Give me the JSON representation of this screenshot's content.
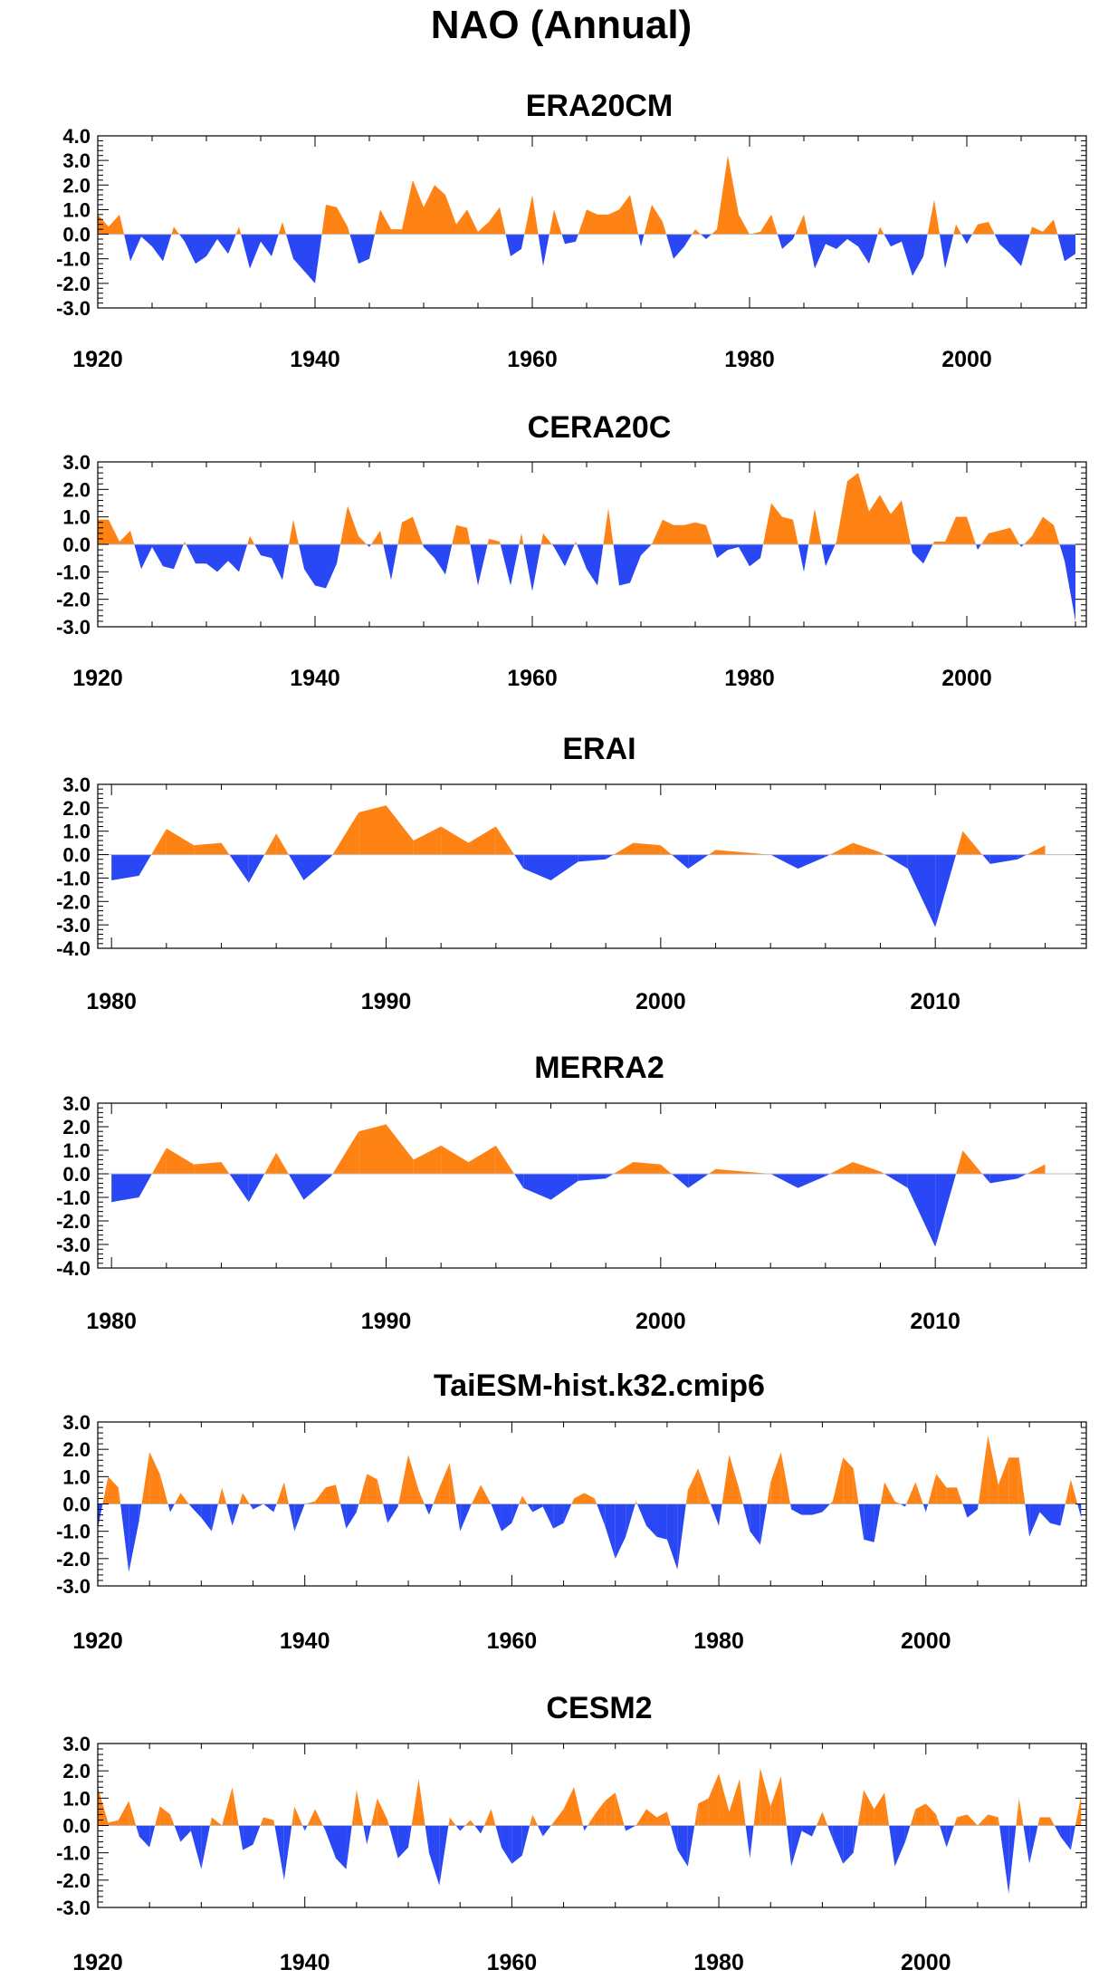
{
  "title": "NAO (Annual)",
  "colors": {
    "positive": "#ff8214",
    "negative": "#2a47f5",
    "axis": "#000000"
  },
  "chart_data": [
    {
      "type": "area",
      "title": "ERA20CM",
      "x_start": 1920,
      "xlim": [
        1920,
        2011
      ],
      "ylim": [
        -3.0,
        4.0
      ],
      "yticks": [
        "4.0",
        "3.0",
        "2.0",
        "1.0",
        "0.0",
        "-1.0",
        "-2.0",
        "-3.0"
      ],
      "xticks": [
        "1920",
        "1940",
        "1960",
        "1980",
        "2000"
      ],
      "values": [
        0.8,
        0.3,
        0.8,
        -1.1,
        -0.1,
        -0.5,
        -1.1,
        0.3,
        -0.3,
        -1.2,
        -0.9,
        -0.2,
        -0.8,
        0.3,
        -1.4,
        -0.3,
        -0.9,
        0.5,
        -1.0,
        -1.5,
        -2.0,
        1.2,
        1.1,
        0.3,
        -1.2,
        -1.0,
        1.0,
        0.2,
        0.2,
        2.2,
        1.1,
        2.0,
        1.6,
        0.4,
        1.0,
        0.1,
        0.5,
        1.1,
        -0.9,
        -0.6,
        1.6,
        -1.3,
        1.0,
        -0.4,
        -0.3,
        1.0,
        0.8,
        0.8,
        1.0,
        1.6,
        -0.5,
        1.2,
        0.5,
        -1.0,
        -0.5,
        0.2,
        -0.2,
        0.2,
        3.2,
        0.8,
        0.0,
        0.1,
        0.8,
        -0.6,
        -0.2,
        0.8,
        -1.4,
        -0.4,
        -0.6,
        -0.2,
        -0.5,
        -1.2,
        0.3,
        -0.5,
        -0.3,
        -1.7,
        -0.9,
        1.4,
        -1.4,
        0.4,
        -0.4,
        0.4,
        0.5,
        -0.4,
        -0.8,
        -1.3,
        0.3,
        0.1,
        0.6,
        -1.1,
        -0.8
      ]
    },
    {
      "type": "area",
      "title": "CERA20C",
      "x_start": 1920,
      "xlim": [
        1920,
        2011
      ],
      "ylim": [
        -3.0,
        3.0
      ],
      "yticks": [
        "3.0",
        "2.0",
        "1.0",
        "0.0",
        "-1.0",
        "-2.0",
        "-3.0"
      ],
      "xticks": [
        "1920",
        "1940",
        "1960",
        "1980",
        "2000"
      ],
      "values": [
        0.9,
        0.9,
        0.1,
        0.5,
        -0.9,
        -0.1,
        -0.8,
        -0.9,
        0.1,
        -0.7,
        -0.7,
        -1.0,
        -0.6,
        -1.0,
        0.3,
        -0.4,
        -0.5,
        -1.3,
        0.9,
        -0.9,
        -1.5,
        -1.6,
        -0.7,
        1.4,
        0.3,
        -0.1,
        0.5,
        -1.3,
        0.8,
        1.0,
        -0.1,
        -0.5,
        -1.1,
        0.7,
        0.6,
        -1.5,
        0.2,
        0.1,
        -1.5,
        0.4,
        -1.7,
        0.4,
        -0.1,
        -0.8,
        0.1,
        -0.9,
        -1.5,
        1.3,
        -1.5,
        -1.4,
        -0.4,
        0.0,
        0.9,
        0.7,
        0.7,
        0.8,
        0.7,
        -0.5,
        -0.2,
        -0.1,
        -0.8,
        -0.5,
        1.5,
        1.0,
        0.9,
        -1.0,
        1.3,
        -0.8,
        0.1,
        2.3,
        2.6,
        1.2,
        1.8,
        1.1,
        1.6,
        -0.3,
        -0.7,
        0.1,
        0.1,
        1.0,
        1.0,
        -0.2,
        0.4,
        0.5,
        0.6,
        -0.1,
        0.3,
        1.0,
        0.7,
        -0.6,
        -2.8
      ]
    },
    {
      "type": "area",
      "title": "ERAI",
      "x_start": 1980,
      "xlim": [
        1979.5,
        2015.5
      ],
      "ylim": [
        -4.0,
        3.0
      ],
      "yticks": [
        "3.0",
        "2.0",
        "1.0",
        "0.0",
        "-1.0",
        "-2.0",
        "-3.0",
        "-4.0"
      ],
      "xticks": [
        "1980",
        "1990",
        "2000",
        "2010"
      ],
      "values": [
        -1.1,
        -0.9,
        1.1,
        0.4,
        0.5,
        -1.2,
        0.9,
        -1.1,
        -0.1,
        1.8,
        2.1,
        0.6,
        1.2,
        0.5,
        1.2,
        -0.6,
        -1.1,
        -0.3,
        -0.2,
        0.5,
        0.4,
        -0.6,
        0.2,
        0.1,
        0.0,
        -0.6,
        -0.1,
        0.5,
        0.1,
        -0.6,
        -3.1,
        1.0,
        -0.4,
        -0.2,
        0.4
      ]
    },
    {
      "type": "area",
      "title": "MERRA2",
      "x_start": 1980,
      "xlim": [
        1979.5,
        2015.5
      ],
      "ylim": [
        -4.0,
        3.0
      ],
      "yticks": [
        "3.0",
        "2.0",
        "1.0",
        "0.0",
        "-1.0",
        "-2.0",
        "-3.0",
        "-4.0"
      ],
      "xticks": [
        "1980",
        "1990",
        "2000",
        "2010"
      ],
      "values": [
        -1.2,
        -1.0,
        1.1,
        0.4,
        0.5,
        -1.2,
        0.9,
        -1.1,
        -0.1,
        1.8,
        2.1,
        0.6,
        1.2,
        0.5,
        1.2,
        -0.6,
        -1.1,
        -0.3,
        -0.2,
        0.5,
        0.4,
        -0.6,
        0.2,
        0.1,
        0.0,
        -0.6,
        -0.1,
        0.5,
        0.1,
        -0.6,
        -3.1,
        1.0,
        -0.4,
        -0.2,
        0.4
      ]
    },
    {
      "type": "area",
      "title": "TaiESM-hist.k32.cmip6",
      "x_start": 1920,
      "xlim": [
        1920,
        2015.5
      ],
      "ylim": [
        -3.0,
        3.0
      ],
      "yticks": [
        "3.0",
        "2.0",
        "1.0",
        "0.0",
        "-1.0",
        "-2.0",
        "-3.0"
      ],
      "xticks": [
        "1920",
        "1940",
        "1960",
        "1980",
        "2000"
      ],
      "values": [
        -0.9,
        1.0,
        0.6,
        -2.5,
        -0.6,
        1.9,
        1.1,
        -0.3,
        0.4,
        -0.1,
        -0.5,
        -1.0,
        0.6,
        -0.8,
        0.4,
        -0.2,
        0.0,
        -0.3,
        0.8,
        -1.0,
        0.0,
        0.1,
        0.6,
        0.7,
        -0.9,
        -0.3,
        1.1,
        0.9,
        -0.7,
        -0.1,
        1.8,
        0.5,
        -0.4,
        0.6,
        1.5,
        -1.0,
        -0.1,
        0.7,
        0.0,
        -1.0,
        -0.7,
        0.3,
        -0.3,
        -0.1,
        -0.9,
        -0.7,
        0.2,
        0.4,
        0.2,
        -0.8,
        -2.0,
        -1.2,
        0.1,
        -0.8,
        -1.2,
        -1.3,
        -2.4,
        0.5,
        1.3,
        0.2,
        -0.8,
        1.8,
        0.5,
        -1.0,
        -1.5,
        0.8,
        1.9,
        -0.2,
        -0.4,
        -0.4,
        -0.3,
        0.1,
        1.7,
        1.3,
        -1.3,
        -1.4,
        0.8,
        0.1,
        -0.1,
        0.8,
        -0.3,
        1.1,
        0.6,
        0.6,
        -0.5,
        -0.2,
        2.5,
        0.7,
        1.7,
        1.7,
        -1.2,
        -0.3,
        -0.7,
        -0.8,
        0.9,
        -0.5
      ]
    },
    {
      "type": "area",
      "title": "CESM2",
      "x_start": 1920,
      "xlim": [
        1920,
        2015.5
      ],
      "ylim": [
        -3.0,
        3.0
      ],
      "yticks": [
        "3.0",
        "2.0",
        "1.0",
        "0.0",
        "-1.0",
        "-2.0",
        "-3.0"
      ],
      "xticks": [
        "1920",
        "1940",
        "1960",
        "1980",
        "2000"
      ],
      "values": [
        1.4,
        0.1,
        0.2,
        0.9,
        -0.4,
        -0.8,
        0.7,
        0.4,
        -0.6,
        -0.2,
        -1.6,
        0.3,
        0.0,
        1.4,
        -0.9,
        -0.7,
        0.3,
        0.2,
        -2.0,
        0.7,
        -0.2,
        0.6,
        -0.2,
        -1.2,
        -1.6,
        1.3,
        -0.7,
        1.0,
        0.2,
        -1.2,
        -0.8,
        1.7,
        -1.0,
        -2.2,
        0.3,
        -0.2,
        0.2,
        -0.3,
        0.6,
        -0.8,
        -1.4,
        -1.1,
        0.4,
        -0.4,
        0.1,
        0.6,
        1.4,
        -0.2,
        0.4,
        0.9,
        1.2,
        -0.2,
        0.0,
        0.6,
        0.3,
        0.5,
        -0.9,
        -1.5,
        0.8,
        1.0,
        1.9,
        0.5,
        1.7,
        -1.2,
        2.1,
        0.7,
        1.8,
        -1.5,
        -0.2,
        -0.4,
        0.5,
        -0.5,
        -1.4,
        -1.0,
        1.3,
        0.6,
        1.2,
        -1.5,
        -0.6,
        0.6,
        0.8,
        0.4,
        -0.8,
        0.3,
        0.4,
        0.0,
        0.4,
        0.3,
        -2.5,
        1.0,
        -1.4,
        0.3,
        0.3,
        -0.4,
        -0.9,
        1.1
      ]
    }
  ]
}
